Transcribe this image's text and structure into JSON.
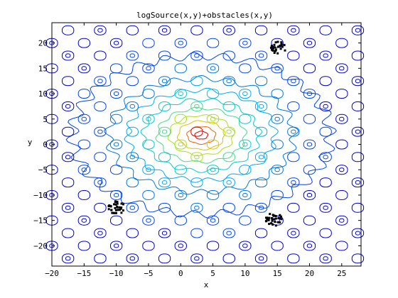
{
  "chart_data": {
    "type": "contour",
    "title": "logSource(x,y)+obstacles(x,y)",
    "xlabel": "x",
    "ylabel": "y",
    "xlim": [
      -20,
      28
    ],
    "ylim": [
      -24,
      24
    ],
    "xticks": [
      -20,
      -15,
      -10,
      -5,
      0,
      5,
      10,
      15,
      20,
      25
    ],
    "xtick_labels": [
      "−20",
      "−15",
      "−10",
      "−5",
      "0",
      "5",
      "10",
      "15",
      "20",
      "25"
    ],
    "yticks": [
      -20,
      -15,
      -10,
      -5,
      0,
      5,
      10,
      15,
      20
    ],
    "ytick_labels": [
      "−20",
      "−15",
      "−10",
      "−5",
      "0",
      "5",
      "10",
      "15",
      "20"
    ],
    "grid": false,
    "source_center": [
      3.2,
      1.8
    ],
    "obstacle_grid_spacing": 5,
    "contour_levels": [
      {
        "radius": 1.0,
        "color": "#e60000"
      },
      {
        "radius": 2.2,
        "color": "#f06000"
      },
      {
        "radius": 3.6,
        "color": "#e0c000"
      },
      {
        "radius": 5.0,
        "color": "#aadd22"
      },
      {
        "radius": 6.8,
        "color": "#44dd88"
      },
      {
        "radius": 9.0,
        "color": "#00cccc"
      },
      {
        "radius": 11.4,
        "color": "#00aaee"
      },
      {
        "radius": 14.4,
        "color": "#0077dd"
      },
      {
        "radius": 20.0,
        "color": "#0044ee"
      }
    ],
    "scatter_clusters": [
      {
        "center": [
          15.0,
          19.0
        ],
        "count": 30
      },
      {
        "center": [
          -10.0,
          -12.5
        ],
        "count": 30
      },
      {
        "center": [
          14.5,
          -14.8
        ],
        "count": 30
      }
    ]
  }
}
